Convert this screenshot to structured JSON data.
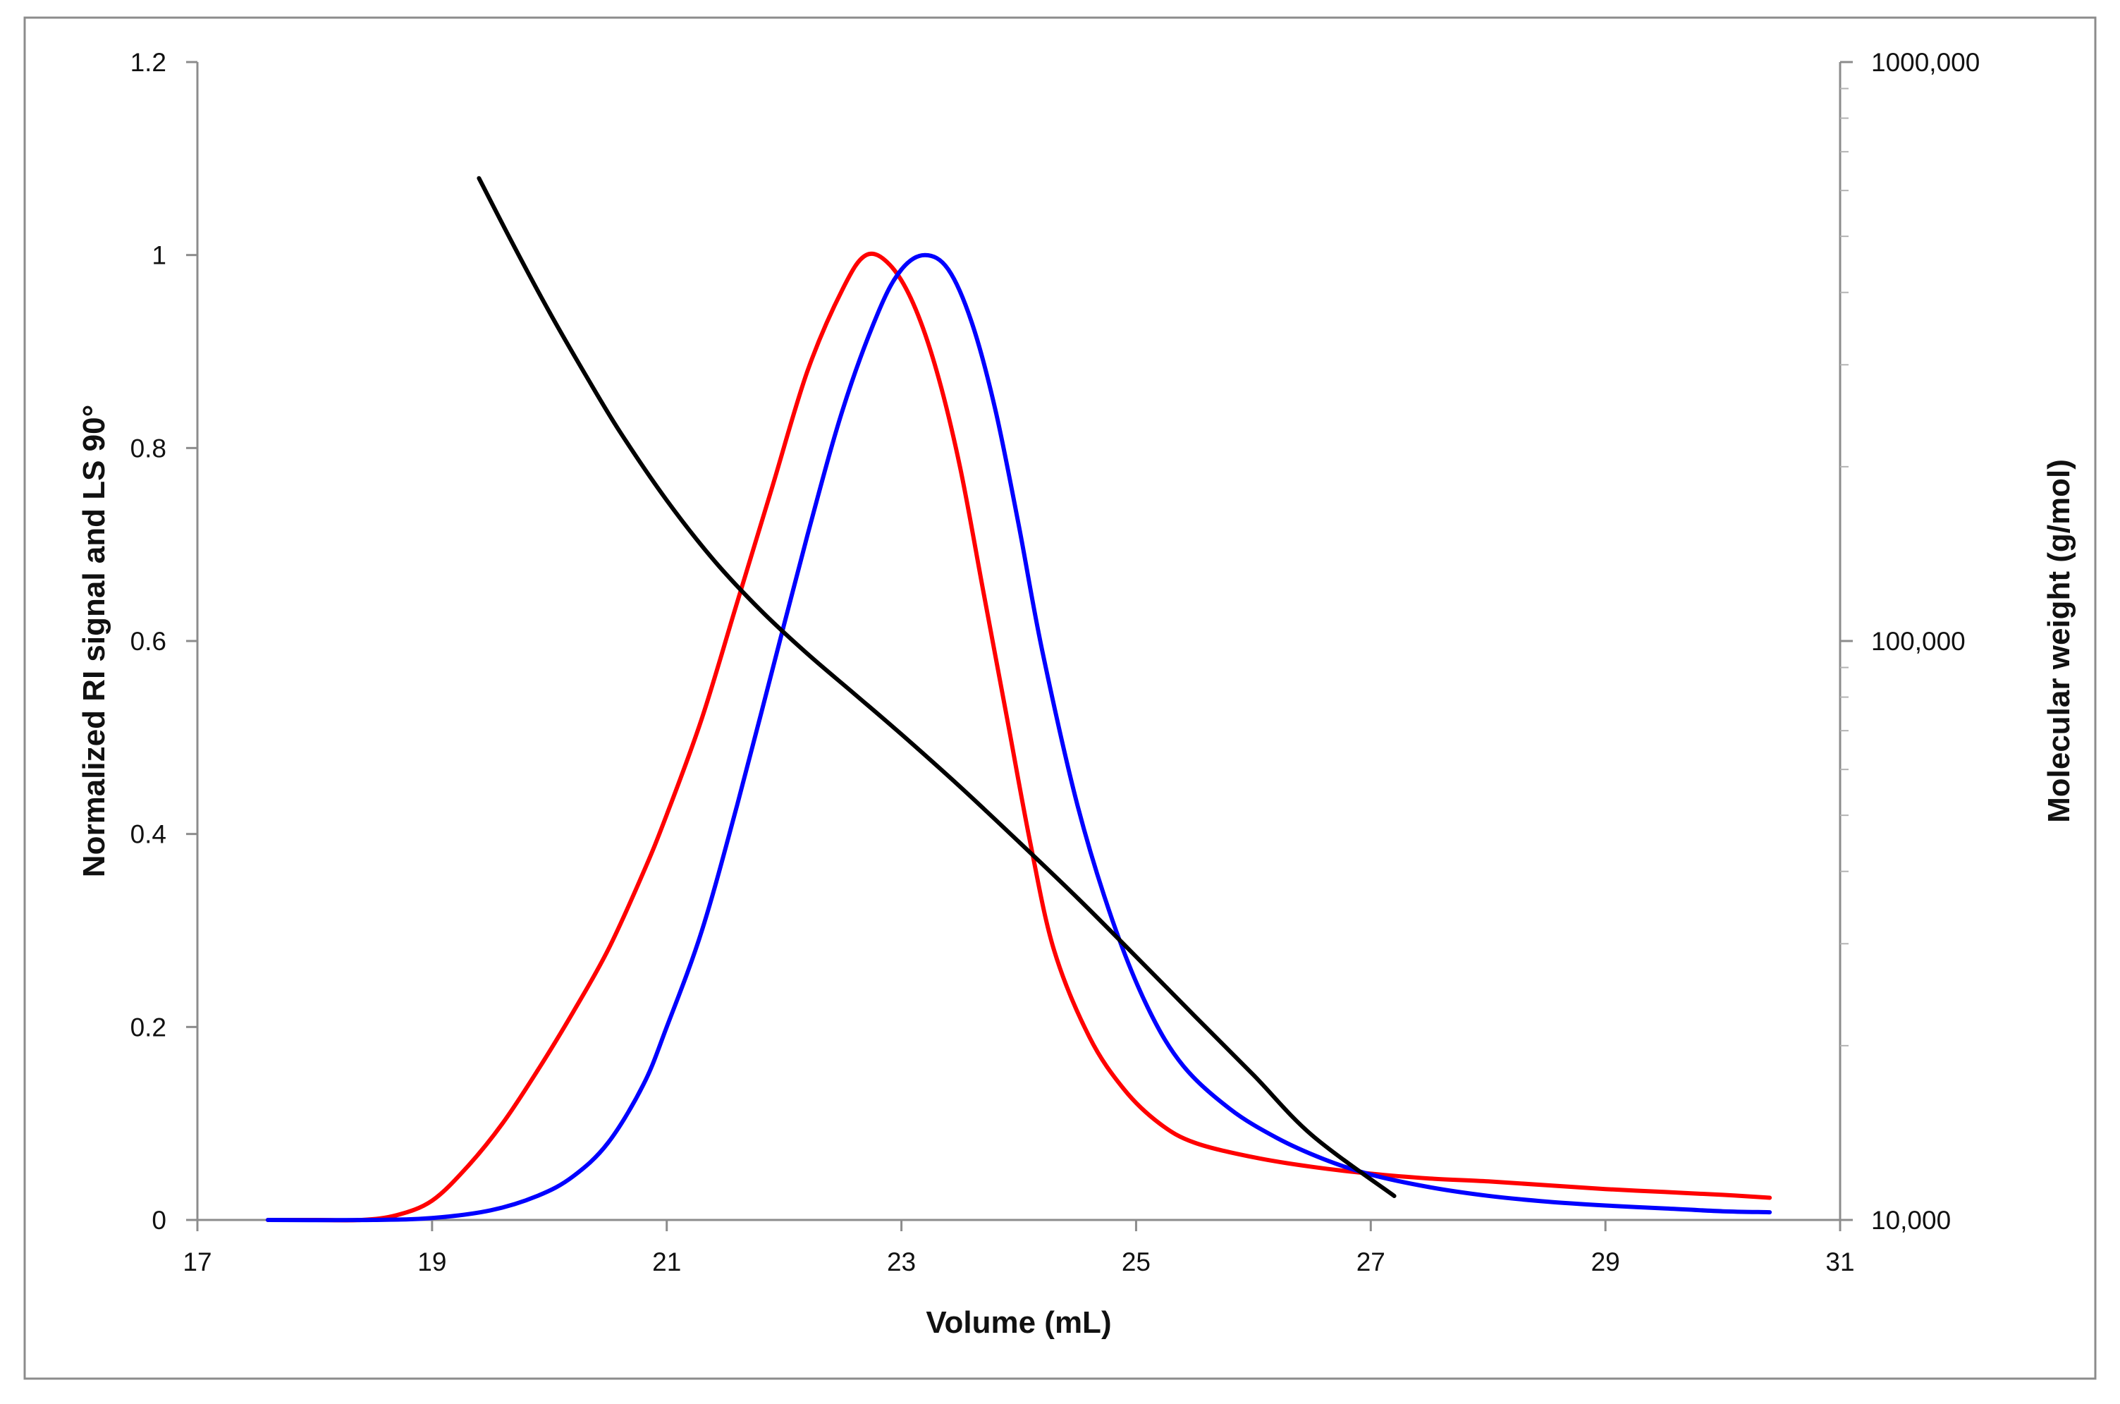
{
  "chart_data": {
    "type": "line",
    "xlabel": "Volume (mL)",
    "ylabel": "Normalized RI signal and LS 90°",
    "y2label": "Molecular weight (g/mol)",
    "xlim": [
      17,
      31
    ],
    "ylim": [
      0,
      1.2
    ],
    "y2lim": [
      10000,
      1000000
    ],
    "y2scale": "log",
    "grid": false,
    "legend": "none",
    "x_tick_labels": [
      "17",
      "19",
      "21",
      "23",
      "25",
      "27",
      "29",
      "31"
    ],
    "y_tick_labels": [
      "0",
      "0.2",
      "0.4",
      "0.6",
      "0.8",
      "1",
      "1.2"
    ],
    "y2_tick_labels": [
      "10,000",
      "100,000",
      "1000,000"
    ],
    "series": [
      {
        "color": "#ff0000",
        "axis": "left",
        "x": [
          17.6,
          18.0,
          18.4,
          18.7,
          19.0,
          19.3,
          19.6,
          19.9,
          20.2,
          20.5,
          20.8,
          21.0,
          21.3,
          21.6,
          21.9,
          22.2,
          22.5,
          22.7,
          22.9,
          23.1,
          23.3,
          23.5,
          23.7,
          23.9,
          24.1,
          24.3,
          24.6,
          24.9,
          25.2,
          25.5,
          26.0,
          26.5,
          27.0,
          27.5,
          28.0,
          28.5,
          29.0,
          29.5,
          30.0,
          30.4
        ],
        "y": [
          0.0,
          0.0,
          0.0,
          0.005,
          0.02,
          0.055,
          0.1,
          0.155,
          0.215,
          0.28,
          0.36,
          0.42,
          0.52,
          0.64,
          0.76,
          0.88,
          0.965,
          1.0,
          0.99,
          0.95,
          0.88,
          0.78,
          0.65,
          0.52,
          0.39,
          0.28,
          0.19,
          0.135,
          0.1,
          0.08,
          0.065,
          0.055,
          0.048,
          0.043,
          0.04,
          0.036,
          0.032,
          0.029,
          0.026,
          0.023
        ]
      },
      {
        "color": "#0000ff",
        "axis": "left",
        "x": [
          17.6,
          18.5,
          19.0,
          19.5,
          19.9,
          20.2,
          20.5,
          20.8,
          21.0,
          21.3,
          21.6,
          21.9,
          22.2,
          22.5,
          22.8,
          23.0,
          23.2,
          23.4,
          23.6,
          23.8,
          24.0,
          24.2,
          24.5,
          24.8,
          25.1,
          25.4,
          25.8,
          26.2,
          26.6,
          27.0,
          27.5,
          28.0,
          28.5,
          29.0,
          29.5,
          30.0,
          30.4
        ],
        "y": [
          0.0,
          0.0,
          0.002,
          0.01,
          0.025,
          0.045,
          0.08,
          0.14,
          0.2,
          0.3,
          0.43,
          0.57,
          0.71,
          0.84,
          0.94,
          0.985,
          1.0,
          0.985,
          0.93,
          0.84,
          0.72,
          0.59,
          0.43,
          0.31,
          0.22,
          0.16,
          0.115,
          0.085,
          0.063,
          0.047,
          0.034,
          0.025,
          0.019,
          0.015,
          0.012,
          0.009,
          0.008
        ]
      },
      {
        "color": "#000000",
        "axis": "right",
        "x": [
          19.4,
          19.7,
          20.0,
          20.3,
          20.6,
          21.0,
          21.4,
          21.8,
          22.2,
          22.6,
          23.0,
          23.5,
          24.0,
          24.5,
          25.0,
          25.5,
          26.0,
          26.5,
          27.2
        ],
        "y": [
          630000,
          480000,
          370000,
          290000,
          230000,
          175000,
          138000,
          113000,
          95000,
          81000,
          69000,
          56000,
          45000,
          36000,
          28500,
          22500,
          17800,
          14000,
          11000
        ]
      }
    ]
  }
}
